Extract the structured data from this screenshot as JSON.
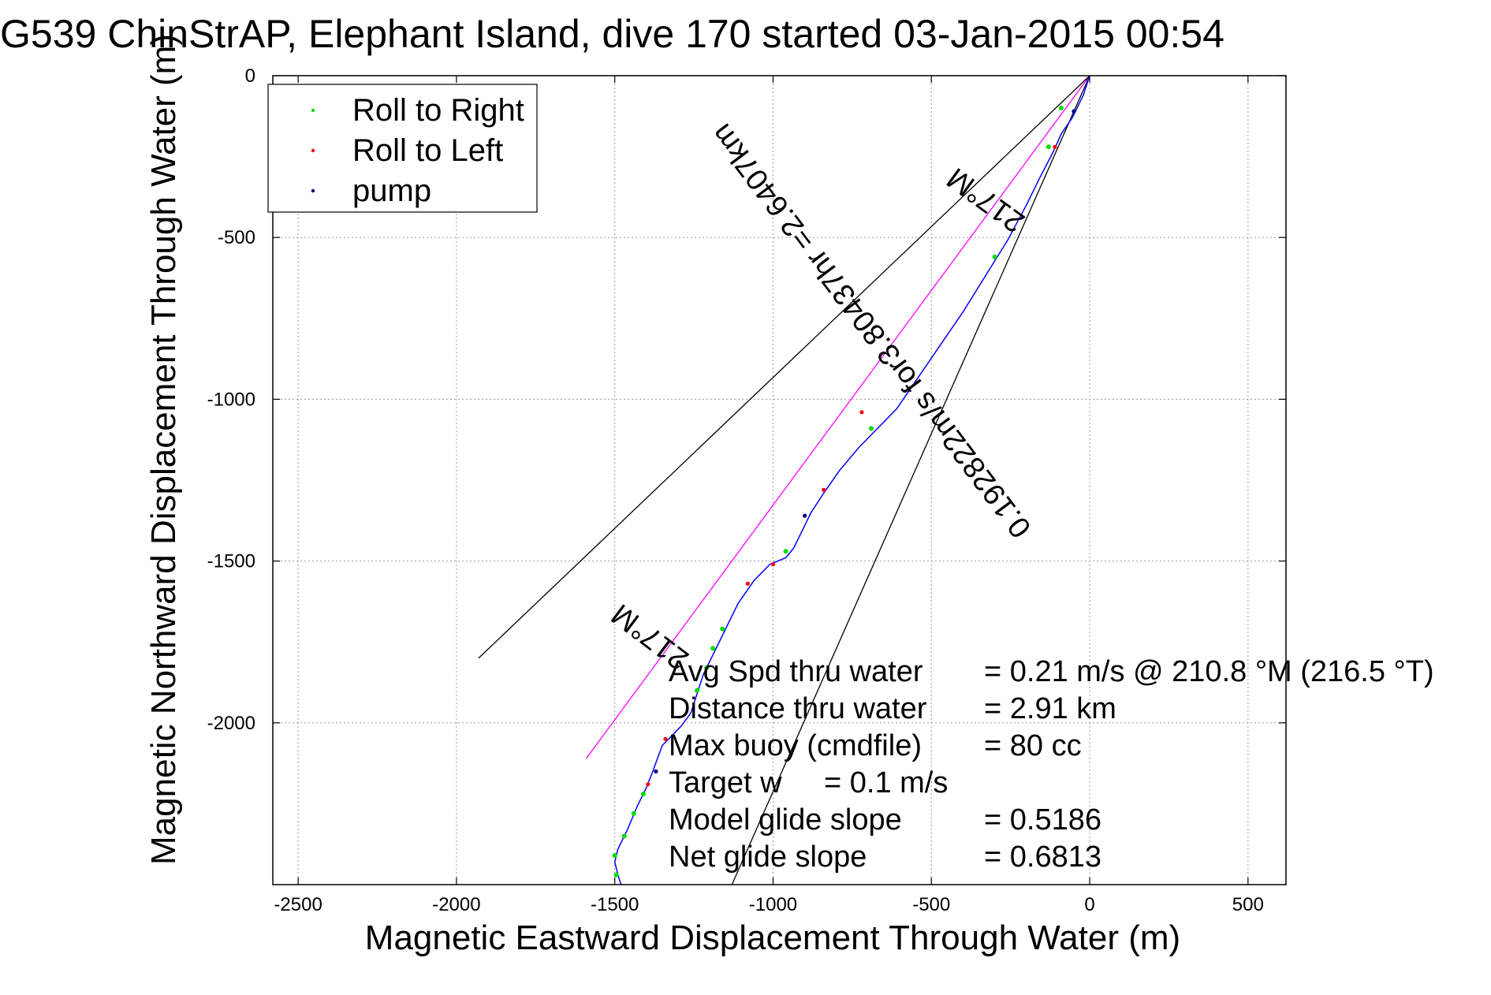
{
  "chart_data": {
    "type": "line",
    "title": "G539 ChinStrAP, Elephant Island, dive 170 started 03-Jan-2015 00:54",
    "xlabel": "Magnetic Eastward Displacement Through Water (m)",
    "ylabel": "Magnetic Northward Displacement Through Water (m)",
    "xlim": [
      -2580,
      620
    ],
    "ylim": [
      -2500,
      0
    ],
    "x_ticks": [
      -2500,
      -2000,
      -1500,
      -1000,
      -500,
      0,
      500
    ],
    "y_ticks": [
      0,
      -500,
      -1000,
      -1500,
      -2000
    ],
    "x_tick_labels": [
      "-2500",
      "-2000",
      "-1500",
      "-1000",
      "-500",
      "0",
      "500"
    ],
    "y_tick_labels": [
      "0",
      "-500",
      "-1000",
      "-1500",
      "-2000"
    ],
    "grid": true,
    "legend_position": "top-left",
    "legend": [
      {
        "label": "Roll to Right",
        "color": "#00dd00"
      },
      {
        "label": "Roll to Left",
        "color": "#ff0000"
      },
      {
        "label": "pump",
        "color": "#000080"
      }
    ],
    "track": {
      "name": "glider track",
      "color": "#0000ff",
      "points": [
        [
          0,
          0
        ],
        [
          -20,
          -60
        ],
        [
          -55,
          -130
        ],
        [
          -90,
          -180
        ],
        [
          -115,
          -235
        ],
        [
          -160,
          -320
        ],
        [
          -200,
          -400
        ],
        [
          -260,
          -510
        ],
        [
          -330,
          -620
        ],
        [
          -400,
          -730
        ],
        [
          -470,
          -830
        ],
        [
          -540,
          -930
        ],
        [
          -610,
          -1030
        ],
        [
          -680,
          -1100
        ],
        [
          -730,
          -1150
        ],
        [
          -790,
          -1220
        ],
        [
          -840,
          -1290
        ],
        [
          -880,
          -1350
        ],
        [
          -910,
          -1410
        ],
        [
          -935,
          -1460
        ],
        [
          -960,
          -1490
        ],
        [
          -1010,
          -1510
        ],
        [
          -1060,
          -1560
        ],
        [
          -1110,
          -1630
        ],
        [
          -1150,
          -1710
        ],
        [
          -1185,
          -1780
        ],
        [
          -1220,
          -1850
        ],
        [
          -1240,
          -1910
        ],
        [
          -1260,
          -1970
        ],
        [
          -1290,
          -2010
        ],
        [
          -1320,
          -2040
        ],
        [
          -1350,
          -2070
        ],
        [
          -1365,
          -2110
        ],
        [
          -1380,
          -2150
        ],
        [
          -1400,
          -2200
        ],
        [
          -1430,
          -2260
        ],
        [
          -1460,
          -2330
        ],
        [
          -1490,
          -2390
        ],
        [
          -1500,
          -2430
        ],
        [
          -1490,
          -2470
        ],
        [
          -1480,
          -2500
        ]
      ],
      "roll_right": [
        [
          -90,
          -100
        ],
        [
          -130,
          -220
        ],
        [
          -300,
          -560
        ],
        [
          -690,
          -1090
        ],
        [
          -960,
          -1470
        ],
        [
          -1160,
          -1710
        ],
        [
          -1190,
          -1770
        ],
        [
          -1210,
          -1830
        ],
        [
          -1240,
          -1900
        ],
        [
          -1410,
          -2220
        ],
        [
          -1440,
          -2280
        ],
        [
          -1470,
          -2350
        ],
        [
          -1500,
          -2410
        ],
        [
          -1495,
          -2470
        ]
      ],
      "roll_left": [
        [
          -110,
          -220
        ],
        [
          -720,
          -1040
        ],
        [
          -840,
          -1280
        ],
        [
          -1000,
          -1510
        ],
        [
          -1080,
          -1570
        ],
        [
          -1340,
          -2050
        ],
        [
          -1395,
          -2190
        ]
      ],
      "pump": [
        [
          -50,
          -110
        ],
        [
          -900,
          -1360
        ],
        [
          -1370,
          -2150
        ]
      ]
    },
    "reference_lines": [
      {
        "name": "217 °M line",
        "color": "#ff00ff",
        "from": [
          0,
          0
        ],
        "to": [
          -1590,
          -2110
        ]
      },
      {
        "name": "upper envelope",
        "color": "#000000",
        "from": [
          0,
          0
        ],
        "to": [
          -1930,
          -1800
        ]
      },
      {
        "name": "lower envelope",
        "color": "#000000",
        "from": [
          0,
          0
        ],
        "to": [
          -1130,
          -2500
        ]
      }
    ],
    "annotations": [
      {
        "text": "217°M",
        "x": -310,
        "y": -360,
        "rotation": 216
      },
      {
        "text": "0.192822m/s for3.80437hr =2.6407km",
        "x": -665,
        "y": -770,
        "rotation": 233
      },
      {
        "text": "217°M",
        "x": -1370,
        "y": -1710,
        "rotation": 217
      }
    ],
    "stats": [
      {
        "label": "Avg Spd thru water",
        "value": "=  0.21 m/s @ 210.8 °M (216.5 °T)"
      },
      {
        "label": "Distance thru water",
        "value": "=  2.91 km"
      },
      {
        "label": "Max buoy (cmdfile)",
        "value": "= 80 cc"
      },
      {
        "label": "Target w",
        "value": "= 0.1 m/s"
      },
      {
        "label": "Model glide slope",
        "value": "= 0.5186"
      },
      {
        "label": "Net glide slope",
        "value": "= 0.6813"
      }
    ]
  }
}
